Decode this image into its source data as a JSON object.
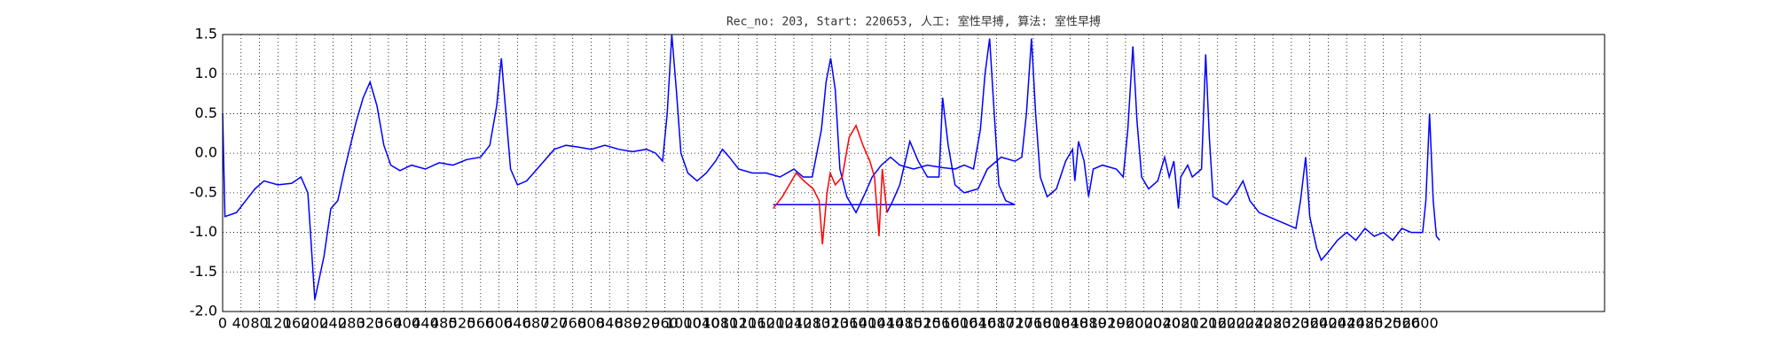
{
  "chart_data": {
    "type": "line",
    "title": "Rec_no: 203, Start: 220653, 人工: 室性早搏, 算法: 室性早搏",
    "xlim": [
      0,
      3000
    ],
    "xticks": [
      0,
      40,
      80,
      120,
      160,
      200,
      240,
      280,
      320,
      360,
      400,
      440,
      480,
      520,
      560,
      600,
      640,
      680,
      720,
      760,
      800,
      840,
      880,
      920,
      960,
      1000,
      1040,
      1080,
      1120,
      1160,
      1200,
      1240,
      1280,
      1320,
      1360,
      1400,
      1440,
      1480,
      1520,
      1560,
      1600,
      1640,
      1680,
      1720,
      1760,
      1800,
      1840,
      1880,
      1920,
      1960,
      2000,
      2040,
      2080,
      2120,
      2160,
      2200,
      2240,
      2280,
      2320,
      2360,
      2400,
      2440,
      2480,
      2520,
      2560,
      2600
    ],
    "ylim": [
      -2.0,
      1.5
    ],
    "yticks": [
      {
        "value": -2.0,
        "label": "-2.0"
      },
      -1.5,
      {
        "value": -1.0,
        "label": "-1.0"
      },
      -0.5,
      {
        "value": 0.0,
        "label": "0.0"
      },
      0.5,
      {
        "value": 1.0,
        "label": "1.0"
      },
      1.5
    ],
    "grid": true,
    "series": [
      {
        "color": "#0000ff",
        "x": [
          0,
          5,
          30,
          50,
          70,
          90,
          120,
          150,
          170,
          185,
          200,
          220,
          235,
          250,
          265,
          290,
          305,
          320,
          335,
          350,
          365,
          385,
          410,
          440,
          470,
          500,
          530,
          560,
          580,
          595,
          605,
          615,
          625,
          640,
          660,
          690,
          720,
          745,
          770,
          800,
          830,
          860,
          890,
          920,
          940,
          955,
          965,
          975,
          985,
          995,
          1010,
          1030,
          1050,
          1070,
          1085,
          1100,
          1120,
          1150,
          1180,
          1210,
          1240,
          1260,
          1280,
          1300,
          1310,
          1320,
          1330,
          1340,
          1355,
          1375,
          1395,
          1410,
          1430,
          1450,
          1470,
          1500,
          1530,
          1560,
          1590,
          1610,
          1630,
          1645,
          1655,
          1665,
          1675,
          1685,
          1700,
          1720,
          1195,
          1300,
          1442,
          1455,
          1470,
          1492,
          1510,
          1530,
          1555,
          1563,
          1575,
          1590,
          1610,
          1640,
          1660,
          1690,
          1720,
          1735,
          1745,
          1756,
          1765,
          1775,
          1790,
          1810,
          1830,
          1845,
          1850,
          1858,
          1870,
          1880,
          1890,
          1910,
          1940,
          1955,
          1965,
          1976,
          1985,
          1995,
          2010,
          2030,
          2045,
          2055,
          2065,
          2075,
          2080,
          2095,
          2105,
          2125,
          2134,
          2142,
          2150,
          2165,
          2180,
          2200,
          2215,
          2230,
          2250,
          2270,
          2290,
          2310,
          2330,
          2340,
          2351,
          2360,
          2375,
          2385,
          2400,
          2420,
          2440,
          2460,
          2480,
          2500,
          2520,
          2540,
          2560,
          2580,
          2605,
          2612,
          2620,
          2628,
          2635,
          2642
        ],
        "values": [
          0.5,
          -0.8,
          -0.75,
          -0.6,
          -0.45,
          -0.35,
          -0.4,
          -0.38,
          -0.3,
          -0.5,
          -1.85,
          -1.3,
          -0.7,
          -0.6,
          -0.2,
          0.4,
          0.7,
          0.9,
          0.6,
          0.1,
          -0.15,
          -0.22,
          -0.15,
          -0.2,
          -0.12,
          -0.15,
          -0.08,
          -0.05,
          0.1,
          0.6,
          1.2,
          0.5,
          -0.2,
          -0.4,
          -0.35,
          -0.15,
          0.05,
          0.1,
          0.08,
          0.05,
          0.1,
          0.05,
          0.02,
          0.05,
          0.0,
          -0.1,
          0.5,
          1.5,
          0.8,
          0.0,
          -0.25,
          -0.35,
          -0.25,
          -0.1,
          0.05,
          -0.05,
          -0.2,
          -0.25,
          -0.25,
          -0.3,
          -0.2,
          -0.3,
          -0.3,
          0.3,
          0.9,
          1.2,
          0.8,
          -0.2,
          -0.55,
          -0.75,
          -0.5,
          -0.3,
          -0.15,
          -0.05,
          -0.15,
          -0.2,
          -0.15,
          -0.18,
          -0.2,
          -0.15,
          -0.2,
          0.3,
          1.0,
          1.45,
          0.5,
          -0.4,
          -0.6,
          -0.65,
          -0.65,
          null,
          -0.75,
          -0.6,
          -0.4,
          0.15,
          -0.1,
          -0.3,
          -0.3,
          0.7,
          0.1,
          -0.4,
          -0.5,
          -0.45,
          -0.2,
          -0.05,
          -0.1,
          -0.05,
          0.5,
          1.45,
          0.5,
          -0.3,
          -0.55,
          -0.45,
          -0.1,
          0.05,
          -0.35,
          0.15,
          -0.1,
          -0.55,
          -0.2,
          -0.15,
          -0.2,
          -0.3,
          0.3,
          1.35,
          0.4,
          -0.3,
          -0.45,
          -0.35,
          -0.05,
          -0.3,
          -0.1,
          -0.7,
          -0.3,
          -0.15,
          -0.3,
          -0.2,
          1.25,
          0.2,
          -0.55,
          -0.6,
          -0.65,
          -0.5,
          -0.35,
          -0.6,
          -0.75,
          -0.8,
          -0.85,
          -0.9,
          -0.95,
          -0.6,
          -0.05,
          -0.8,
          -1.2,
          -1.35,
          -1.25,
          -1.1,
          -1.0,
          -1.1,
          -0.95,
          -1.05,
          -1.0,
          -1.1,
          -0.95,
          -1.0,
          -1.0,
          -0.6,
          0.5,
          -0.6,
          -1.05,
          -1.1
        ]
      },
      {
        "color": "#ff0000",
        "x": [
          1195,
          1215,
          1245,
          1262,
          1282,
          1295,
          1302,
          1312,
          1319,
          1330,
          1345,
          1360,
          1375,
          1390,
          1405,
          1415,
          1425,
          1432,
          1442
        ],
        "values": [
          -0.7,
          -0.55,
          -0.25,
          -0.35,
          -0.45,
          -0.6,
          -1.15,
          -0.5,
          -0.25,
          -0.4,
          -0.3,
          0.2,
          0.35,
          0.1,
          -0.1,
          -0.3,
          -1.05,
          -0.2,
          -0.75
        ]
      }
    ]
  }
}
